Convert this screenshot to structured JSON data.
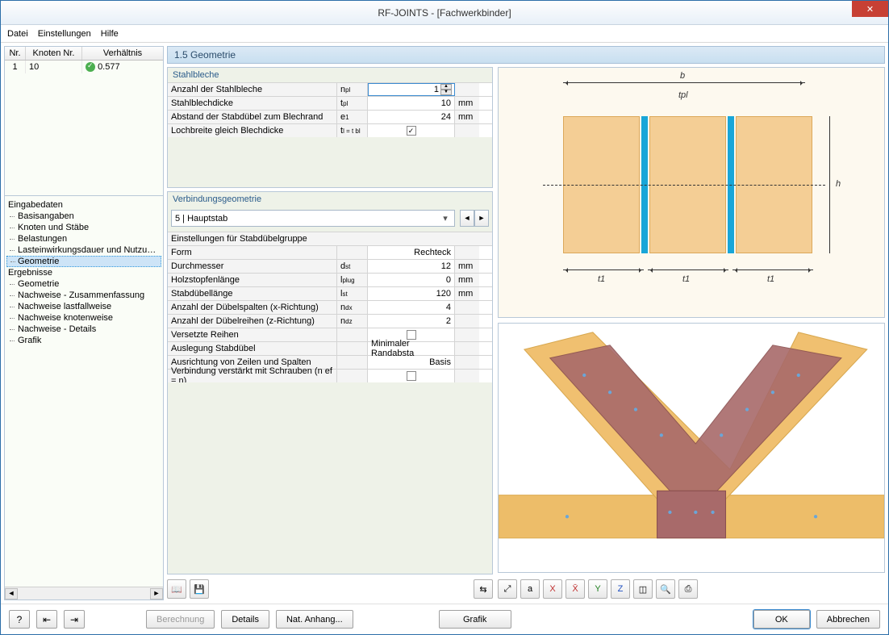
{
  "window": {
    "title": "RF-JOINTS - [Fachwerkbinder]"
  },
  "menu": {
    "datei": "Datei",
    "einstellungen": "Einstellungen",
    "hilfe": "Hilfe"
  },
  "list": {
    "headers": {
      "nr": "Nr.",
      "knoten": "Knoten Nr.",
      "verhaeltnis": "Verhältnis"
    },
    "row": {
      "nr": "1",
      "knoten": "10",
      "verhaeltnis": "0.577"
    }
  },
  "nav": {
    "eingabedaten": "Eingabedaten",
    "basisangaben": "Basisangaben",
    "knoten_staebe": "Knoten und Stäbe",
    "belastungen": "Belastungen",
    "lasteinwirkung": "Lasteinwirkungsdauer und Nutzungsklasse",
    "geometrie": "Geometrie",
    "ergebnisse": "Ergebnisse",
    "erg_geometrie": "Geometrie",
    "nachweise_zus": "Nachweise - Zusammenfassung",
    "nachweise_lf": "Nachweise lastfallweise",
    "nachweise_kn": "Nachweise knotenweise",
    "nachweise_det": "Nachweise - Details",
    "grafik": "Grafik"
  },
  "section_title": "1.5 Geometrie",
  "group1": {
    "title": "Stahlbleche",
    "rows": [
      {
        "label": "Anzahl der Stahlbleche",
        "sym": "n pl",
        "val": "1",
        "unit": "",
        "spinner": true,
        "selected": true
      },
      {
        "label": "Stahlblechdicke",
        "sym": "t pl",
        "val": "10",
        "unit": "mm"
      },
      {
        "label": "Abstand der Stabdübel zum Blechrand",
        "sym": "e 1",
        "val": "24",
        "unit": "mm"
      },
      {
        "label": "Lochbreite gleich Blechdicke",
        "sym": "t l = t bl",
        "val": "",
        "unit": "",
        "check": true,
        "checked": true
      }
    ]
  },
  "group2": {
    "title": "Verbindungsgeometrie",
    "selector": "5 | Hauptstab",
    "subheader": "Einstellungen für  Stabdübelgruppe",
    "rows": [
      {
        "label": "Form",
        "sym": "",
        "val": "Rechteck",
        "unit": ""
      },
      {
        "label": "Durchmesser",
        "sym": "d st",
        "val": "12",
        "unit": "mm"
      },
      {
        "label": "Holzstopfenlänge",
        "sym": "l plug",
        "val": "0",
        "unit": "mm"
      },
      {
        "label": "Stabdübellänge",
        "sym": "l st",
        "val": "120",
        "unit": "mm"
      },
      {
        "label": "Anzahl der Dübelspalten (x-Richtung)",
        "sym": "n dx",
        "val": "4",
        "unit": ""
      },
      {
        "label": "Anzahl der Dübelreihen (z-Richtung)",
        "sym": "n dz",
        "val": "2",
        "unit": ""
      },
      {
        "label": "Versetzte Reihen",
        "sym": "",
        "val": "",
        "unit": "",
        "check": true,
        "checked": false
      },
      {
        "label": "Auslegung Stabdübel",
        "sym": "",
        "val": "Minimaler Randabsta",
        "unit": ""
      },
      {
        "label": "Ausrichtung von Zeilen und Spalten",
        "sym": "",
        "val": "Basis",
        "unit": ""
      },
      {
        "label": "Verbindung verstärkt mit Schrauben (n ef = n)",
        "sym": "",
        "val": "",
        "unit": "",
        "check": true,
        "checked": false
      }
    ]
  },
  "diagram": {
    "labels": {
      "b": "b",
      "tpl": "tpl",
      "h": "h",
      "t1": "t1"
    },
    "colors": {
      "timber": "#f4ce95",
      "timber_border": "#dca85a",
      "plate": "#19a6d8",
      "bg": "#fdf9ef"
    }
  },
  "buttons": {
    "berechnung": "Berechnung",
    "details": "Details",
    "anhang": "Nat. Anhang...",
    "grafik": "Grafik",
    "ok": "OK",
    "abbrechen": "Abbrechen"
  }
}
